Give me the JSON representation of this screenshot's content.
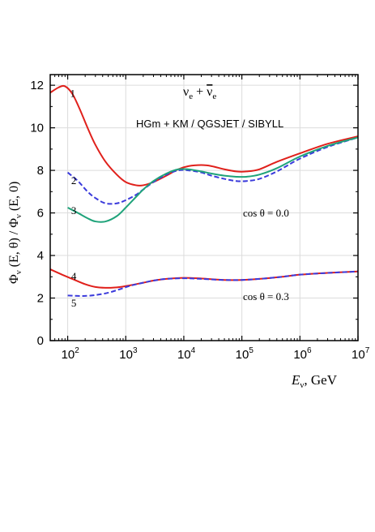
{
  "chart_data": {
    "type": "line",
    "xscale": "log",
    "xlim": [
      50,
      10000000
    ],
    "ylim": [
      0,
      12.5
    ],
    "x_ticks": [
      {
        "value": 100,
        "base": "10",
        "exp": "2"
      },
      {
        "value": 1000,
        "base": "10",
        "exp": "3"
      },
      {
        "value": 10000,
        "base": "10",
        "exp": "4"
      },
      {
        "value": 100000,
        "base": "10",
        "exp": "5"
      },
      {
        "value": 1000000,
        "base": "10",
        "exp": "6"
      },
      {
        "value": 10000000,
        "base": "10",
        "exp": "7"
      }
    ],
    "y_ticks": [
      0,
      2,
      4,
      6,
      8,
      10,
      12
    ],
    "grid": true,
    "xlabel": {
      "sym": "E",
      "sub": "ν",
      "unit": ", GeV"
    },
    "ylabel": {
      "phi": "Φ",
      "sub": "ν",
      "arg1": " (E, θ) / ",
      "arg2": " (E, 0)"
    },
    "title": {
      "nu": "ν",
      "sub": "e",
      "plus": " + "
    },
    "annotations": {
      "model": "HGm + KM / QGSJET / SIBYLL",
      "cos0": "cos θ =  0.0",
      "cos3": "cos θ  = 0.3"
    },
    "series": [
      {
        "label": "1",
        "color": "#e0201b",
        "dash": "none",
        "x": [
          50,
          70,
          90,
          120,
          160,
          220,
          300,
          450,
          700,
          1000,
          1500,
          2000,
          3000,
          5000,
          8000,
          12000,
          20000,
          30000,
          50000,
          80000,
          120000,
          200000,
          400000,
          1000000,
          3000000,
          10000000
        ],
        "y": [
          11.65,
          11.9,
          11.95,
          11.6,
          10.9,
          10.0,
          9.2,
          8.4,
          7.8,
          7.45,
          7.3,
          7.3,
          7.45,
          7.75,
          8.05,
          8.2,
          8.25,
          8.2,
          8.05,
          7.95,
          7.95,
          8.05,
          8.4,
          8.8,
          9.25,
          9.6
        ]
      },
      {
        "label": "2",
        "color": "#3b3bdb",
        "dash": "6,3",
        "x": [
          100,
          150,
          220,
          300,
          450,
          700,
          1000,
          1500,
          2000,
          3000,
          5000,
          8000,
          12000,
          20000,
          30000,
          50000,
          80000,
          120000,
          200000,
          400000,
          1000000,
          3000000,
          10000000
        ],
        "y": [
          7.9,
          7.5,
          7.0,
          6.7,
          6.45,
          6.45,
          6.6,
          6.85,
          7.1,
          7.45,
          7.8,
          8.0,
          8.0,
          7.9,
          7.75,
          7.6,
          7.5,
          7.5,
          7.6,
          7.95,
          8.55,
          9.1,
          9.55
        ]
      },
      {
        "label": "3",
        "color": "#1fa37a",
        "dash": "none",
        "x": [
          100,
          150,
          220,
          300,
          450,
          700,
          1000,
          1500,
          2000,
          3000,
          5000,
          8000,
          12000,
          20000,
          30000,
          50000,
          80000,
          120000,
          200000,
          400000,
          1000000,
          3000000,
          10000000
        ],
        "y": [
          6.25,
          6.0,
          5.75,
          5.6,
          5.6,
          5.85,
          6.25,
          6.75,
          7.1,
          7.5,
          7.85,
          8.05,
          8.05,
          7.95,
          7.85,
          7.75,
          7.7,
          7.7,
          7.8,
          8.1,
          8.65,
          9.15,
          9.55
        ]
      },
      {
        "label": "4",
        "color": "#e0201b",
        "dash": "none",
        "x": [
          50,
          80,
          120,
          200,
          300,
          500,
          800,
          1200,
          2000,
          3000,
          5000,
          10000,
          20000,
          50000,
          100000,
          200000,
          500000,
          1000000,
          3000000,
          10000000
        ],
        "y": [
          3.35,
          3.1,
          2.9,
          2.65,
          2.52,
          2.48,
          2.52,
          2.6,
          2.72,
          2.82,
          2.9,
          2.95,
          2.92,
          2.85,
          2.85,
          2.9,
          3.0,
          3.1,
          3.18,
          3.25
        ]
      },
      {
        "label": "5",
        "color": "#3b3bdb",
        "dash": "6,3",
        "x": [
          100,
          150,
          200,
          300,
          500,
          800,
          1200,
          2000,
          3000,
          5000,
          10000,
          20000,
          50000,
          100000,
          200000,
          500000,
          1000000,
          3000000,
          10000000
        ],
        "y": [
          2.12,
          2.1,
          2.1,
          2.14,
          2.25,
          2.42,
          2.58,
          2.72,
          2.82,
          2.9,
          2.93,
          2.9,
          2.85,
          2.85,
          2.9,
          3.0,
          3.1,
          3.18,
          3.25
        ]
      }
    ]
  }
}
